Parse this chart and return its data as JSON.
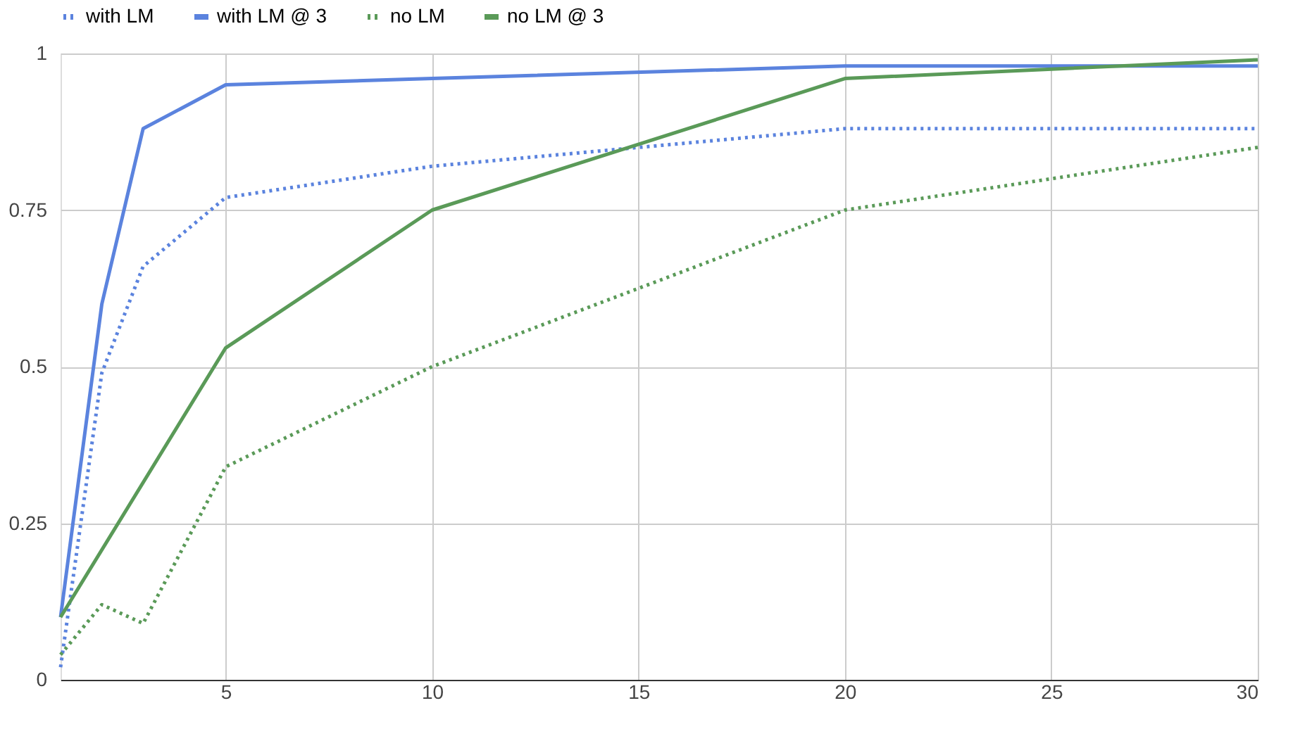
{
  "chart_data": {
    "type": "line",
    "xlim": [
      1,
      30
    ],
    "xticks": [
      5,
      10,
      15,
      20,
      25,
      30
    ],
    "ylim": [
      0,
      1
    ],
    "yticks": [
      0,
      0.25,
      0.5,
      0.75,
      1
    ],
    "grid": true,
    "legend": "top",
    "marker": "none",
    "series": [
      {
        "name": "with LM",
        "color": "#5b83de",
        "line_style": "dotted",
        "x": [
          1,
          2,
          3,
          5,
          10,
          15,
          20,
          30
        ],
        "values": [
          0.02,
          0.49,
          0.66,
          0.77,
          0.82,
          0.85,
          0.88,
          0.88
        ]
      },
      {
        "name": "with LM @ 3",
        "color": "#5b83de",
        "line_style": "solid",
        "x": [
          1,
          2,
          3,
          5,
          10,
          20,
          30
        ],
        "values": [
          0.1,
          0.6,
          0.88,
          0.95,
          0.96,
          0.98,
          0.98
        ]
      },
      {
        "name": "no LM",
        "color": "#5a9a58",
        "line_style": "dotted",
        "x": [
          1,
          2,
          3,
          5,
          10,
          20,
          30
        ],
        "values": [
          0.04,
          0.12,
          0.09,
          0.34,
          0.5,
          0.75,
          0.85
        ]
      },
      {
        "name": "no LM @ 3",
        "color": "#5a9a58",
        "line_style": "solid",
        "x": [
          1,
          5,
          10,
          20,
          30
        ],
        "values": [
          0.1,
          0.53,
          0.75,
          0.96,
          0.99
        ]
      }
    ]
  }
}
